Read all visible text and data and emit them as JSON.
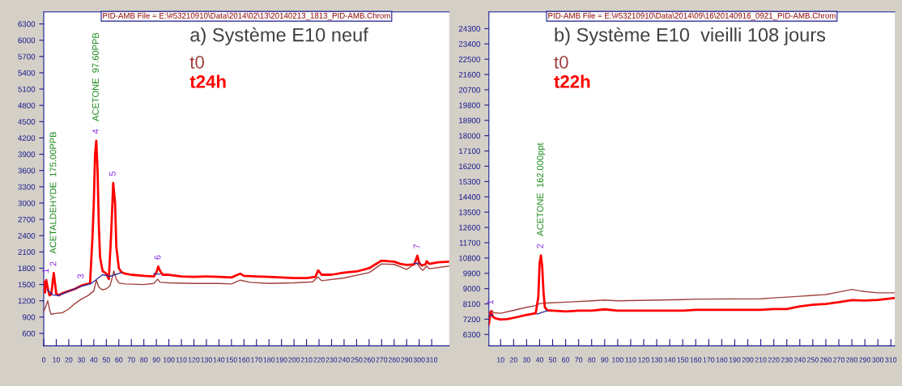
{
  "chart_data": [
    {
      "type": "line",
      "title": "a) Système E10 neuf",
      "subtitle": "PID-AMB File = E:\\#53210910\\Data\\2014\\02\\13\\20140213_1813_PID-AMB.Chrom",
      "xlim": [
        0,
        324
      ],
      "ylim": [
        370,
        6520
      ],
      "xticks": [
        0,
        10,
        20,
        30,
        40,
        50,
        60,
        70,
        80,
        90,
        100,
        110,
        120,
        130,
        140,
        150,
        160,
        170,
        180,
        190,
        200,
        210,
        220,
        230,
        240,
        250,
        260,
        270,
        280,
        290,
        300,
        310
      ],
      "yticks": [
        600,
        900,
        1200,
        1500,
        1800,
        2100,
        2400,
        2700,
        3000,
        3300,
        3600,
        3900,
        4200,
        4500,
        4800,
        5100,
        5400,
        5700,
        6000,
        6300
      ],
      "grid": false,
      "legend": "top",
      "marker": "none",
      "line_style": "solid",
      "series": [
        {
          "name": "t0",
          "color": "#a0403c",
          "x": [
            0,
            3.2,
            5,
            6,
            10,
            15,
            20,
            25,
            30,
            35,
            40,
            42,
            44,
            47,
            50,
            53,
            55,
            56,
            58,
            60,
            65,
            80,
            88,
            91,
            93,
            100,
            120,
            140,
            150,
            157,
            165,
            180,
            200,
            215,
            219,
            222,
            240,
            260,
            270,
            280,
            290,
            298,
            301,
            303,
            306,
            308,
            324
          ],
          "values": [
            1000,
            1200,
            1000,
            950,
            970,
            980,
            1050,
            1150,
            1230,
            1290,
            1380,
            1580,
            1450,
            1400,
            1420,
            1480,
            1650,
            1750,
            1600,
            1530,
            1510,
            1500,
            1520,
            1600,
            1540,
            1530,
            1520,
            1520,
            1510,
            1580,
            1540,
            1520,
            1530,
            1550,
            1640,
            1570,
            1620,
            1720,
            1880,
            1870,
            1780,
            1900,
            1800,
            1760,
            1840,
            1790,
            1840
          ]
        },
        {
          "name": "t24h",
          "color": "#ff0000",
          "x": [
            0,
            1,
            2,
            3.5,
            4.6,
            6,
            8,
            10,
            12,
            15,
            20,
            25,
            30,
            35,
            37,
            39,
            40,
            41,
            42,
            43,
            44,
            45,
            47,
            50,
            52,
            54,
            55.5,
            57,
            58,
            60,
            62,
            65,
            70,
            80,
            88,
            90,
            91.5,
            93,
            95,
            100,
            110,
            120,
            130,
            140,
            150,
            155,
            157,
            160,
            170,
            180,
            190,
            200,
            210,
            217,
            219.3,
            222,
            230,
            240,
            250,
            260,
            270,
            280,
            285,
            290,
            296,
            298.6,
            300,
            302,
            305,
            306,
            308,
            315,
            324
          ],
          "values": [
            1550,
            1350,
            1580,
            1400,
            1300,
            1320,
            1710,
            1330,
            1300,
            1340,
            1380,
            1420,
            1480,
            1510,
            1520,
            2400,
            3000,
            3900,
            4150,
            3600,
            2600,
            2000,
            1750,
            1700,
            1600,
            2500,
            3370,
            3000,
            2200,
            1800,
            1730,
            1700,
            1680,
            1660,
            1650,
            1720,
            1830,
            1750,
            1680,
            1680,
            1650,
            1640,
            1650,
            1640,
            1630,
            1680,
            1700,
            1660,
            1650,
            1640,
            1630,
            1620,
            1620,
            1640,
            1760,
            1680,
            1680,
            1720,
            1740,
            1800,
            1940,
            1920,
            1880,
            1860,
            1870,
            2030,
            1900,
            1850,
            1870,
            1930,
            1880,
            1910,
            1920
          ]
        },
        {
          "color": "#3030a0",
          "x": [
            3,
            7,
            12,
            28,
            38,
            47,
            53,
            62,
            63,
            88,
            93,
            94,
            296,
            301
          ],
          "values": [
            1400,
            1310,
            1300,
            1450,
            1520,
            1680,
            1650,
            1720,
            null,
            1700,
            1690,
            null,
            1890,
            1880
          ]
        }
      ],
      "annotations": [
        {
          "text": "1",
          "x": 2,
          "y": 1580
        },
        {
          "text": "2",
          "x": 8,
          "y": 1710
        },
        {
          "text": "ACETALDEHYDE  175.00PPB",
          "x": 8,
          "y": 1710
        },
        {
          "text": "3",
          "x": 30,
          "y": 1480
        },
        {
          "text": "4",
          "x": 42,
          "y": 4150
        },
        {
          "text": "ACETONE  97.60PPB",
          "x": 42,
          "y": 4150
        },
        {
          "text": "5",
          "x": 55.5,
          "y": 3370
        },
        {
          "text": "6",
          "x": 91.5,
          "y": 1830
        },
        {
          "text": "7",
          "x": 298.6,
          "y": 2030
        }
      ]
    },
    {
      "type": "line",
      "title": "b) Système E10  vieilli 108 jours",
      "subtitle": "PID-AMB File = E:\\#53210910\\Data\\2014\\09\\16\\20140916_0921_PID-AMB.Chrom",
      "xlim": [
        1,
        313
      ],
      "ylim": [
        5630,
        25280
      ],
      "xticks": [
        10,
        20,
        30,
        40,
        50,
        60,
        70,
        80,
        90,
        100,
        110,
        120,
        130,
        140,
        150,
        160,
        170,
        180,
        190,
        200,
        210,
        220,
        230,
        240,
        250,
        260,
        270,
        280,
        290,
        300,
        310
      ],
      "yticks": [
        6300,
        7200,
        8100,
        9000,
        9900,
        10800,
        11700,
        12600,
        13500,
        14400,
        15300,
        16200,
        17100,
        18000,
        18900,
        19800,
        20700,
        21600,
        22500,
        23400,
        24300
      ],
      "grid": false,
      "legend": "top",
      "marker": "none",
      "line_style": "solid",
      "series": [
        {
          "name": "t0",
          "color": "#a0403c",
          "x": [
            1,
            2,
            3,
            5,
            10,
            20,
            30,
            37,
            40,
            45,
            60,
            80,
            90,
            100,
            150,
            160,
            210,
            220,
            240,
            250,
            260,
            270,
            280,
            285,
            290,
            300,
            313
          ],
          "values": [
            7500,
            7650,
            7720,
            7580,
            7550,
            7720,
            7900,
            8000,
            8120,
            8150,
            8200,
            8280,
            8330,
            8280,
            8350,
            8380,
            8400,
            8450,
            8550,
            8600,
            8650,
            8800,
            8950,
            8880,
            8830,
            8750,
            8750
          ]
        },
        {
          "name": "t22h",
          "color": "#ff0000",
          "x": [
            1,
            2,
            2.6,
            4,
            6,
            10,
            15,
            20,
            30,
            37,
            39,
            40,
            41,
            42,
            43,
            44,
            46,
            50,
            60,
            70,
            80,
            90,
            100,
            150,
            160,
            200,
            210,
            220,
            230,
            240,
            250,
            260,
            270,
            280,
            290,
            300,
            313
          ],
          "values": [
            6900,
            7450,
            7650,
            7350,
            7250,
            7180,
            7200,
            7280,
            7450,
            7550,
            8500,
            10500,
            10950,
            10300,
            8800,
            7900,
            7720,
            7700,
            7650,
            7700,
            7700,
            7780,
            7700,
            7700,
            7750,
            7750,
            7750,
            7800,
            7800,
            7950,
            8050,
            8100,
            8200,
            8320,
            8300,
            8330,
            8450
          ]
        },
        {
          "color": "#3030a0",
          "x": [
            1,
            4,
            5,
            38,
            46
          ],
          "values": [
            7400,
            7450,
            null,
            7500,
            7700
          ]
        }
      ],
      "annotations": [
        {
          "text": "1",
          "x": 2.6,
          "y": 7650
        },
        {
          "text": "2",
          "x": 41,
          "y": 10950
        },
        {
          "text": "ACETONE  162.000ppt",
          "x": 41,
          "y": 10950
        }
      ]
    }
  ]
}
